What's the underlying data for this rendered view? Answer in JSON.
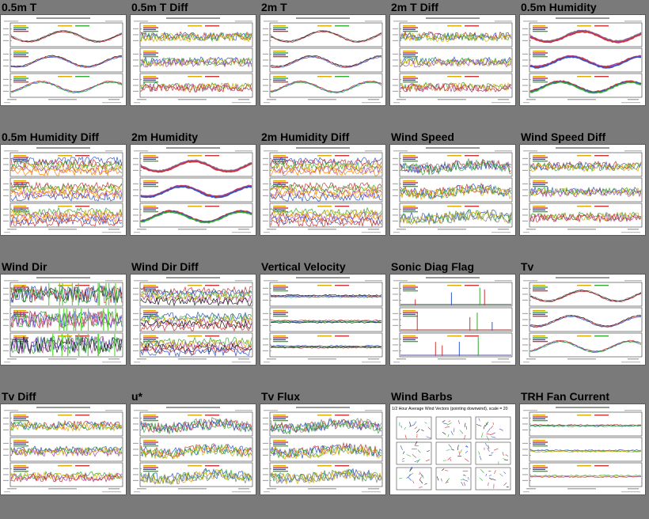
{
  "gallery": {
    "tiles": [
      {
        "title": "0.5m T",
        "kind": "ts",
        "colors": [
          "#808080",
          "#1a1a1a",
          "#cc3333",
          "#3355cc",
          "#33aa33",
          "#ddaa00"
        ],
        "legend": [
          "#ddaa00",
          "#33aa33",
          "#3355cc",
          "#cc3333"
        ]
      },
      {
        "title": "0.5m T Diff",
        "kind": "diff",
        "colors": [
          "#cc3333",
          "#3355cc",
          "#33aa33",
          "#ddaa00",
          "#aa44aa"
        ],
        "legend": [
          "#ddaa00",
          "#cc3333",
          "#3355cc",
          "#33aa33"
        ]
      },
      {
        "title": "2m T",
        "kind": "ts",
        "colors": [
          "#808080",
          "#1a1a1a",
          "#cc3333",
          "#3355cc",
          "#33aa33",
          "#ddaa00"
        ],
        "legend": [
          "#ddaa00",
          "#33aa33",
          "#3355cc",
          "#cc3333"
        ]
      },
      {
        "title": "2m T Diff",
        "kind": "diff",
        "colors": [
          "#cc3333",
          "#3355cc",
          "#33aa33",
          "#ddaa00",
          "#aa44aa"
        ],
        "legend": [
          "#ddaa00",
          "#cc3333",
          "#3355cc",
          "#33aa33"
        ]
      },
      {
        "title": "0.5m Humidity",
        "kind": "thick",
        "colors": [
          "#808080",
          "#aa44aa",
          "#cc3333",
          "#3355cc",
          "#33aa33",
          "#ddaa00"
        ],
        "legend": [
          "#ddaa00",
          "#cc3333",
          "#3355cc",
          "#33aa33"
        ]
      },
      {
        "title": "0.5m Humidity Diff",
        "kind": "busy",
        "colors": [
          "#3355cc",
          "#cc3333",
          "#33aa33",
          "#ddaa00",
          "#aa44aa",
          "#ff8800"
        ],
        "legend": [
          "#ddaa00",
          "#cc3333",
          "#3355cc",
          "#33aa33"
        ]
      },
      {
        "title": "2m Humidity",
        "kind": "thick",
        "colors": [
          "#808080",
          "#aa44aa",
          "#cc3333",
          "#3355cc",
          "#33aa33",
          "#ddaa00"
        ],
        "legend": [
          "#ddaa00",
          "#cc3333",
          "#3355cc",
          "#33aa33"
        ]
      },
      {
        "title": "2m Humidity Diff",
        "kind": "busy",
        "colors": [
          "#3355cc",
          "#cc3333",
          "#33aa33",
          "#ddaa00",
          "#aa44aa",
          "#ff8800"
        ],
        "legend": [
          "#ddaa00",
          "#cc3333",
          "#3355cc",
          "#33aa33"
        ]
      },
      {
        "title": "Wind Speed",
        "kind": "noisy",
        "colors": [
          "#808080",
          "#cc3333",
          "#3355cc",
          "#33aa33",
          "#ddaa00"
        ],
        "legend": [
          "#ddaa00",
          "#cc3333",
          "#3355cc",
          "#33aa33"
        ]
      },
      {
        "title": "Wind Speed Diff",
        "kind": "diff",
        "colors": [
          "#cc3333",
          "#3355cc",
          "#33aa33",
          "#ddaa00",
          "#aa44aa"
        ],
        "legend": [
          "#ddaa00",
          "#cc3333",
          "#3355cc",
          "#33aa33"
        ]
      },
      {
        "title": "Wind Dir",
        "kind": "dir",
        "colors": [
          "#1a1a1a",
          "#cc3333",
          "#3355cc",
          "#33aa33",
          "#aa44aa"
        ],
        "legend": [
          "#ddaa00",
          "#cc3333",
          "#3355cc",
          "#33aa33"
        ]
      },
      {
        "title": "Wind Dir Diff",
        "kind": "dirdiff",
        "colors": [
          "#cc3333",
          "#3355cc",
          "#33aa33",
          "#ddaa00",
          "#aa44aa",
          "#1a1a1a"
        ],
        "legend": [
          "#ddaa00",
          "#cc3333",
          "#3355cc",
          "#33aa33"
        ]
      },
      {
        "title": "Vertical Velocity",
        "kind": "flat",
        "colors": [
          "#1a1a1a",
          "#cc3333",
          "#3355cc",
          "#33aa33"
        ],
        "legend": [
          "#ddaa00",
          "#cc3333",
          "#3355cc",
          "#33aa33"
        ]
      },
      {
        "title": "Sonic Diag Flag",
        "kind": "flag",
        "colors": [
          "#cc3333",
          "#3355cc",
          "#33aa33",
          "#1a1a1a"
        ],
        "legend": [
          "#ddaa00",
          "#cc3333",
          "#3355cc",
          "#33aa33"
        ]
      },
      {
        "title": "Tv",
        "kind": "ts",
        "colors": [
          "#808080",
          "#1a1a1a",
          "#cc3333",
          "#3355cc",
          "#33aa33",
          "#ddaa00"
        ],
        "legend": [
          "#ddaa00",
          "#33aa33",
          "#3355cc",
          "#cc3333"
        ]
      },
      {
        "title": "Tv Diff",
        "kind": "diff",
        "colors": [
          "#cc3333",
          "#3355cc",
          "#33aa33",
          "#ddaa00",
          "#aa44aa"
        ],
        "legend": [
          "#ddaa00",
          "#cc3333",
          "#3355cc",
          "#33aa33"
        ]
      },
      {
        "title": "u*",
        "kind": "noisy",
        "colors": [
          "#808080",
          "#cc3333",
          "#3355cc",
          "#33aa33",
          "#ddaa00"
        ],
        "legend": [
          "#ddaa00",
          "#cc3333",
          "#3355cc",
          "#33aa33"
        ]
      },
      {
        "title": "Tv Flux",
        "kind": "noisy",
        "colors": [
          "#808080",
          "#cc3333",
          "#3355cc",
          "#33aa33",
          "#ddaa00"
        ],
        "legend": [
          "#ddaa00",
          "#cc3333",
          "#3355cc",
          "#33aa33"
        ]
      },
      {
        "title": "Wind Barbs",
        "kind": "barbs",
        "colors": [
          "#cc3333",
          "#3355cc",
          "#33aa33",
          "#1a1a1a"
        ],
        "legend": [],
        "subtitle": "1/2 Hour Average Wind Vectors (pointing downwind), scale = 20"
      },
      {
        "title": "TRH Fan Current",
        "kind": "flatband",
        "colors": [
          "#cc3333",
          "#3355cc",
          "#33aa33",
          "#ddaa00",
          "#aa44aa"
        ],
        "legend": [
          "#ddaa00",
          "#cc3333",
          "#3355cc",
          "#33aa33"
        ]
      }
    ]
  }
}
